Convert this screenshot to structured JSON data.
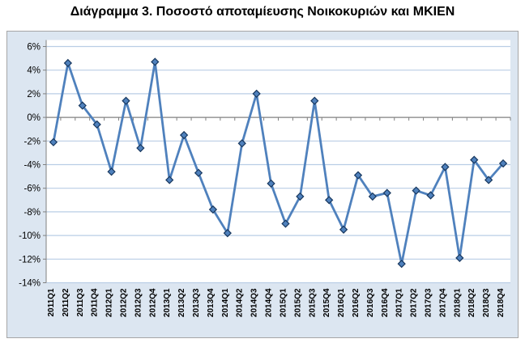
{
  "title": "Διάγραμμα 3. Ποσοστό αποταμίευσης Νοικοκυριών και ΜΚΙΕΝ",
  "chart_data": {
    "type": "line",
    "title": "Διάγραμμα 3. Ποσοστό αποταμίευσης Νοικοκυριών και ΜΚΙΕΝ",
    "categories": [
      "2011Q1",
      "2011Q2",
      "2011Q3",
      "2011Q4",
      "2012Q1",
      "2012Q2",
      "2012Q3",
      "2012Q4",
      "2013Q1",
      "2013Q2",
      "2013Q3",
      "2013Q4",
      "2014Q1",
      "2014Q2",
      "2014Q3",
      "2014Q4",
      "2015Q1",
      "2015Q2",
      "2015Q3",
      "2015Q4",
      "2016Q1",
      "2016Q2",
      "2016Q3",
      "2016Q4",
      "2017Q1",
      "2017Q2",
      "2017Q3",
      "2017Q4",
      "2018Q1",
      "2018Q2",
      "2018Q3",
      "2018Q4"
    ],
    "series": [
      {
        "name": "Ποσοστό αποταμίευσης Νοικοκυριών και ΜΚΙΕΝ",
        "values": [
          -2.1,
          4.6,
          1.0,
          -0.6,
          -4.6,
          1.4,
          -2.6,
          4.7,
          -5.3,
          -1.5,
          -4.7,
          -7.8,
          -9.8,
          -2.2,
          2.0,
          -5.6,
          -9.0,
          -6.7,
          1.4,
          -7.0,
          -9.5,
          -4.9,
          -6.7,
          -6.4,
          -12.4,
          -6.2,
          -6.6,
          -4.2,
          -11.9,
          -3.6,
          -5.3,
          -3.9
        ]
      }
    ],
    "xlabel": "",
    "ylabel": "",
    "ylim": [
      -14,
      6
    ],
    "ytick_step": 2,
    "ytick_suffix": "%",
    "grid": true,
    "legend": "none",
    "marker": "diamond",
    "colors": {
      "line": "#4F81BD",
      "marker_fill": "#4F81BD",
      "marker_border": "#17375E",
      "chart_background": "#DCE6F1",
      "plot_background": "#FFFFFF",
      "gridline": "#B9CDE5",
      "axis": "#808080",
      "text": "#000000"
    }
  }
}
